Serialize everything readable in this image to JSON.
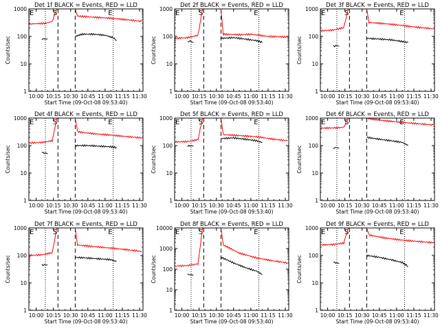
{
  "figure": {
    "colors": {
      "events": "#000000",
      "lld": "#ff0000",
      "frame": "#000000"
    },
    "y_ticks": [
      "1",
      "10",
      "100",
      "1000",
      "10000"
    ],
    "x_ticks": [
      "10:00",
      "10:15",
      "10:30",
      "10:45",
      "11:00",
      "11:15",
      "11:30"
    ],
    "xlabel": "Start Time (09-Oct-08 09:53:40)",
    "ylabel": "Counts/sec",
    "markers": {
      "E1": "E",
      "S": "S",
      "E2": "E"
    }
  },
  "chart_data": [
    {
      "type": "line",
      "title": "Det 1f BLACK = Events, RED = LLD",
      "xlabel": "Start Time (09-Oct-08 09:53:40)",
      "ylabel": "Counts/sec",
      "x_unit": "time of day (09-Oct-08)",
      "xlim": [
        "09:53:40",
        "11:33:00"
      ],
      "ylim": [
        1,
        1000
      ],
      "y_scale": "log",
      "vlines": {
        "dotted": [
          "10:08",
          "11:07"
        ],
        "dashed": [
          "10:19",
          "10:34"
        ]
      },
      "series": [
        {
          "name": "BLACK = Events",
          "color": "#000000",
          "segments": [
            {
              "x": [
                "10:05",
                "10:08",
                "10:10"
              ],
              "y": [
                80,
                80,
                80
              ]
            },
            {
              "x": [
                "10:34",
                "10:40",
                "10:50",
                "11:00",
                "11:07",
                "11:10"
              ],
              "y": [
                100,
                120,
                120,
                110,
                90,
                70
              ]
            }
          ]
        },
        {
          "name": "RED = LLD",
          "color": "#ff0000",
          "segments": [
            {
              "x": [
                "09:54",
                "10:00",
                "10:08",
                "10:14",
                "10:18",
                "10:20",
                "10:34",
                "10:36",
                "10:50",
                "11:05",
                "11:20",
                "11:32"
              ],
              "y": [
                280,
                290,
                300,
                350,
                1000,
                1000,
                1000,
                550,
                500,
                460,
                400,
                350
              ]
            }
          ]
        }
      ]
    },
    {
      "type": "line",
      "title": "Det 2f BLACK = Events, RED = LLD",
      "xlabel": "Start Time (09-Oct-08 09:53:40)",
      "ylabel": "Counts/sec",
      "x_unit": "time of day (09-Oct-08)",
      "xlim": [
        "09:53:40",
        "11:33:00"
      ],
      "ylim": [
        1,
        1000
      ],
      "y_scale": "log",
      "vlines": {
        "dotted": [
          "10:08",
          "11:07"
        ],
        "dashed": [
          "10:19",
          "10:34"
        ]
      },
      "series": [
        {
          "name": "BLACK = Events",
          "color": "#000000",
          "segments": [
            {
              "x": [
                "10:05",
                "10:08",
                "10:10"
              ],
              "y": [
                65,
                65,
                60
              ]
            },
            {
              "x": [
                "10:34",
                "10:45",
                "10:55",
                "11:05",
                "11:10"
              ],
              "y": [
                85,
                90,
                80,
                70,
                60
              ]
            }
          ]
        },
        {
          "name": "RED = LLD",
          "color": "#ff0000",
          "segments": [
            {
              "x": [
                "09:54",
                "10:05",
                "10:14",
                "10:18",
                "10:20",
                "10:34",
                "10:36",
                "10:50",
                "11:00",
                "11:15",
                "11:32"
              ],
              "y": [
                85,
                90,
                110,
                1000,
                1000,
                1000,
                120,
                115,
                120,
                100,
                95
              ]
            }
          ]
        }
      ]
    },
    {
      "type": "line",
      "title": "Det 3f BLACK = Events, RED = LLD",
      "xlabel": "Start Time (09-Oct-08 09:53:40)",
      "ylabel": "Counts/sec",
      "x_unit": "time of day (09-Oct-08)",
      "xlim": [
        "09:53:40",
        "11:33:00"
      ],
      "ylim": [
        1,
        1000
      ],
      "y_scale": "log",
      "vlines": {
        "dotted": [
          "10:08",
          "11:07"
        ],
        "dashed": [
          "10:19",
          "10:34"
        ]
      },
      "series": [
        {
          "name": "BLACK = Events",
          "color": "#000000",
          "segments": [
            {
              "x": [
                "10:05",
                "10:08",
                "10:10"
              ],
              "y": [
                45,
                45,
                45
              ]
            },
            {
              "x": [
                "10:34",
                "10:45",
                "10:55",
                "11:05",
                "11:10"
              ],
              "y": [
                85,
                80,
                75,
                65,
                60
              ]
            }
          ]
        },
        {
          "name": "RED = LLD",
          "color": "#ff0000",
          "segments": [
            {
              "x": [
                "09:54",
                "10:05",
                "10:14",
                "10:18",
                "10:20",
                "10:34",
                "10:36",
                "10:50",
                "11:05",
                "11:20",
                "11:32"
              ],
              "y": [
                160,
                170,
                210,
                1000,
                1000,
                1000,
                320,
                290,
                250,
                210,
                190
              ]
            }
          ]
        }
      ]
    },
    {
      "type": "line",
      "title": "Det 4f BLACK = Events, RED = LLD",
      "xlabel": "Start Time (09-Oct-08 09:53:40)",
      "ylabel": "Counts/sec",
      "x_unit": "time of day (09-Oct-08)",
      "xlim": [
        "09:53:40",
        "11:33:00"
      ],
      "ylim": [
        1,
        1000
      ],
      "y_scale": "log",
      "vlines": {
        "dotted": [
          "10:08",
          "11:07"
        ],
        "dashed": [
          "10:19",
          "10:34"
        ]
      },
      "series": [
        {
          "name": "BLACK = Events",
          "color": "#000000",
          "segments": [
            {
              "x": [
                "10:05",
                "10:08",
                "10:10"
              ],
              "y": [
                55,
                55,
                50
              ]
            },
            {
              "x": [
                "10:34",
                "10:45",
                "10:55",
                "11:05",
                "11:10"
              ],
              "y": [
                100,
                100,
                95,
                90,
                85
              ]
            }
          ]
        },
        {
          "name": "RED = LLD",
          "color": "#ff0000",
          "segments": [
            {
              "x": [
                "09:54",
                "10:05",
                "10:14",
                "10:18",
                "10:20",
                "10:34",
                "10:36",
                "10:50",
                "11:05",
                "11:20",
                "11:32"
              ],
              "y": [
                125,
                130,
                150,
                1000,
                1000,
                1000,
                320,
                270,
                240,
                210,
                190
              ]
            }
          ]
        }
      ]
    },
    {
      "type": "line",
      "title": "Det 5f BLACK = Events, RED = LLD",
      "xlabel": "Start Time (09-Oct-08 09:53:40)",
      "ylabel": "Counts/sec",
      "x_unit": "time of day (09-Oct-08)",
      "xlim": [
        "09:53:40",
        "11:33:00"
      ],
      "ylim": [
        1,
        1000
      ],
      "y_scale": "log",
      "vlines": {
        "dotted": [
          "10:08",
          "11:07"
        ],
        "dashed": [
          "10:19",
          "10:34"
        ]
      },
      "series": [
        {
          "name": "BLACK = Events",
          "color": "#000000",
          "segments": [
            {
              "x": [
                "10:05",
                "10:08",
                "10:10"
              ],
              "y": [
                95,
                100,
                95
              ]
            },
            {
              "x": [
                "10:34",
                "10:45",
                "10:55",
                "11:05",
                "11:10"
              ],
              "y": [
                180,
                190,
                170,
                150,
                130
              ]
            }
          ]
        },
        {
          "name": "RED = LLD",
          "color": "#ff0000",
          "segments": [
            {
              "x": [
                "09:54",
                "10:05",
                "10:14",
                "10:18",
                "10:20",
                "10:34",
                "10:36",
                "10:50",
                "11:05",
                "11:20",
                "11:32"
              ],
              "y": [
                135,
                140,
                165,
                1000,
                1000,
                1000,
                250,
                230,
                210,
                170,
                150
              ]
            }
          ]
        }
      ]
    },
    {
      "type": "line",
      "title": "Det 6f BLACK = Events, RED = LLD",
      "xlabel": "Start Time (09-Oct-08 09:53:40)",
      "ylabel": "Counts/sec",
      "x_unit": "time of day (09-Oct-08)",
      "xlim": [
        "09:53:40",
        "11:33:00"
      ],
      "ylim": [
        1,
        1000
      ],
      "y_scale": "log",
      "vlines": {
        "dotted": [
          "10:08",
          "11:07"
        ],
        "dashed": [
          "10:19",
          "10:34"
        ]
      },
      "series": [
        {
          "name": "BLACK = Events",
          "color": "#000000",
          "segments": [
            {
              "x": [
                "10:05",
                "10:08",
                "10:10"
              ],
              "y": [
                80,
                85,
                80
              ]
            },
            {
              "x": [
                "10:34",
                "10:45",
                "10:55",
                "11:05",
                "11:10"
              ],
              "y": [
                200,
                170,
                150,
                130,
                100
              ]
            }
          ]
        },
        {
          "name": "RED = LLD",
          "color": "#ff0000",
          "segments": [
            {
              "x": [
                "09:54",
                "10:05",
                "10:14",
                "10:18",
                "10:20",
                "10:34",
                "10:36",
                "10:50",
                "11:05",
                "11:20",
                "11:32"
              ],
              "y": [
                430,
                440,
                460,
                1000,
                1000,
                1000,
                950,
                800,
                700,
                620,
                560
              ]
            }
          ]
        }
      ]
    },
    {
      "type": "line",
      "title": "Det 7f BLACK = Events, RED = LLD",
      "xlabel": "Start Time (09-Oct-08 09:53:40)",
      "ylabel": "Counts/sec",
      "x_unit": "time of day (09-Oct-08)",
      "xlim": [
        "09:53:40",
        "11:33:00"
      ],
      "ylim": [
        1,
        1000
      ],
      "y_scale": "log",
      "vlines": {
        "dotted": [
          "10:08",
          "11:07"
        ],
        "dashed": [
          "10:19",
          "10:34"
        ]
      },
      "series": [
        {
          "name": "BLACK = Events",
          "color": "#000000",
          "segments": [
            {
              "x": [
                "10:05",
                "10:08",
                "10:10"
              ],
              "y": [
                45,
                45,
                45
              ]
            },
            {
              "x": [
                "10:34",
                "10:45",
                "10:55",
                "11:05",
                "11:10"
              ],
              "y": [
                85,
                80,
                75,
                70,
                60
              ]
            }
          ]
        },
        {
          "name": "RED = LLD",
          "color": "#ff0000",
          "segments": [
            {
              "x": [
                "09:54",
                "10:05",
                "10:14",
                "10:18",
                "10:20",
                "10:34",
                "10:36",
                "10:50",
                "11:05",
                "11:20",
                "11:32"
              ],
              "y": [
                100,
                105,
                125,
                1000,
                1000,
                1000,
                240,
                210,
                185,
                160,
                140
              ]
            }
          ]
        }
      ]
    },
    {
      "type": "line",
      "title": "Det 8f BLACK = Events, RED = LLD",
      "xlabel": "Start Time (09-Oct-08 09:53:40)",
      "ylabel": "Counts/sec",
      "x_unit": "time of day (09-Oct-08)",
      "xlim": [
        "09:53:40",
        "11:33:00"
      ],
      "ylim": [
        1,
        10000
      ],
      "y_scale": "log",
      "vlines": {
        "dotted": [
          "10:08",
          "11:07"
        ],
        "dashed": [
          "10:19",
          "10:34"
        ]
      },
      "series": [
        {
          "name": "BLACK = Events",
          "color": "#000000",
          "segments": [
            {
              "x": [
                "10:05",
                "10:08",
                "10:10"
              ],
              "y": [
                55,
                55,
                50
              ]
            },
            {
              "x": [
                "10:34",
                "10:45",
                "10:55",
                "11:05",
                "11:10"
              ],
              "y": [
                380,
                200,
                120,
                80,
                55
              ]
            }
          ]
        },
        {
          "name": "RED = LLD",
          "color": "#ff0000",
          "segments": [
            {
              "x": [
                "09:54",
                "10:05",
                "10:14",
                "10:18",
                "10:20",
                "10:34",
                "10:36",
                "10:50",
                "11:05",
                "11:20",
                "11:32"
              ],
              "y": [
                140,
                150,
                180,
                10000,
                10000,
                10000,
                1500,
                600,
                350,
                250,
                200
              ]
            }
          ]
        }
      ]
    },
    {
      "type": "line",
      "title": "Det 9f BLACK = Events, RED = LLD",
      "xlabel": "Start Time (09-Oct-08 09:53:40)",
      "ylabel": "Counts/sec",
      "x_unit": "time of day (09-Oct-08)",
      "xlim": [
        "09:53:40",
        "11:33:00"
      ],
      "ylim": [
        1,
        1000
      ],
      "y_scale": "log",
      "vlines": {
        "dotted": [
          "10:08",
          "11:07"
        ],
        "dashed": [
          "10:19",
          "10:34"
        ]
      },
      "series": [
        {
          "name": "BLACK = Events",
          "color": "#000000",
          "segments": [
            {
              "x": [
                "10:05",
                "10:08",
                "10:10"
              ],
              "y": [
                55,
                55,
                50
              ]
            },
            {
              "x": [
                "10:34",
                "10:45",
                "10:55",
                "11:05",
                "11:10"
              ],
              "y": [
                100,
                85,
                70,
                55,
                40
              ]
            }
          ]
        },
        {
          "name": "RED = LLD",
          "color": "#ff0000",
          "segments": [
            {
              "x": [
                "09:54",
                "10:05",
                "10:14",
                "10:18",
                "10:20",
                "10:34",
                "10:36",
                "10:50",
                "11:05",
                "11:20",
                "11:32"
              ],
              "y": [
                240,
                250,
                280,
                1000,
                1000,
                1000,
                550,
                430,
                360,
                320,
                290
              ]
            }
          ]
        }
      ]
    }
  ]
}
